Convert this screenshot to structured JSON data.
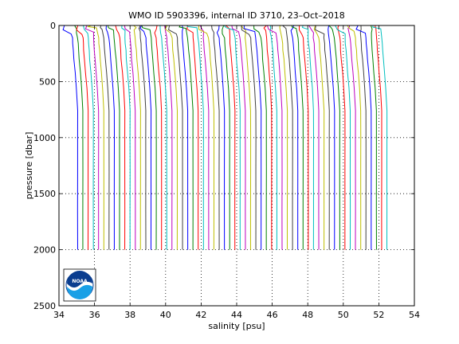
{
  "chart_data": {
    "type": "line",
    "title": "WMO ID 5903396, internal ID 3710, 23–Oct–2018",
    "xlabel": "salinity [psu]",
    "ylabel": "pressure [dbar]",
    "xlim": [
      34,
      54
    ],
    "ylim": [
      0,
      2500
    ],
    "y_reversed": true,
    "grid": true,
    "grid_style": "dotted",
    "x_ticks": [
      34,
      36,
      38,
      40,
      42,
      44,
      46,
      48,
      50,
      52,
      54
    ],
    "y_ticks": [
      0,
      500,
      1000,
      1500,
      2000,
      2500
    ],
    "profiles": {
      "count": 60,
      "pressure_max": 2000,
      "deep_salinity_first": 35.05,
      "deep_salinity_step": 0.295,
      "surface_offset_range": [
        -0.9,
        -0.25
      ],
      "colors": [
        "#0000ff",
        "#008000",
        "#ff0000",
        "#00bfbf",
        "#bf00bf",
        "#bfbf00",
        "#404040"
      ]
    },
    "logo": {
      "text": "NOAA",
      "colors": {
        "background": "#0a3d8f",
        "wave": "#19a0e6",
        "ring": "#ffffff"
      }
    }
  }
}
